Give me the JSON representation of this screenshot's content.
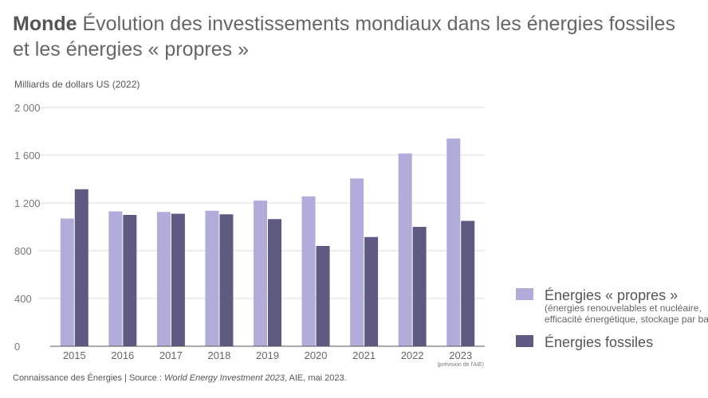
{
  "title": {
    "bold": "Monde",
    "main": "Évolution des investissements mondiaux dans les énergies fossiles",
    "line2": "et les énergies « propres »"
  },
  "colors": {
    "clean": "#b1acda",
    "fossil": "#5e5a82",
    "grid": "#dddddd",
    "axis": "#555555"
  },
  "chart_data": {
    "type": "bar",
    "title": "Monde Évolution des investissements mondiaux dans les énergies fossiles et les énergies « propres »",
    "ylabel": "Milliards de dollars US (2022)",
    "xlabel": "",
    "ylim": [
      0,
      2000
    ],
    "yticks": [
      0,
      400,
      800,
      1200,
      1600,
      2000
    ],
    "ytick_labels": [
      "0",
      "400",
      "800",
      "1 200",
      "1 600",
      "2 000"
    ],
    "categories": [
      "2015",
      "2016",
      "2017",
      "2018",
      "2019",
      "2020",
      "2021",
      "2022",
      "2023"
    ],
    "category_note": {
      "index": 8,
      "text": "(prévision de l'AIE)"
    },
    "grid": true,
    "legend_position": "right",
    "series": [
      {
        "name": "Énergies « propres »",
        "values": [
          1070,
          1130,
          1125,
          1135,
          1220,
          1255,
          1405,
          1615,
          1740
        ]
      },
      {
        "name": "Énergies fossiles",
        "values": [
          1315,
          1100,
          1110,
          1105,
          1065,
          840,
          915,
          1000,
          1050
        ]
      }
    ]
  },
  "legend": {
    "clean_label": "Énergies « propres »",
    "clean_sub1": "(énergies renouvelables et nucléaire,",
    "clean_sub2": "efficacité énergétique, stockage par batteries)",
    "fossil_label": "Énergies fossiles"
  },
  "source": {
    "prefix": "Connaissance des Énergies | Source : ",
    "report": "World Energy Investment 2023",
    "suffix": ", AIE, mai 2023."
  }
}
